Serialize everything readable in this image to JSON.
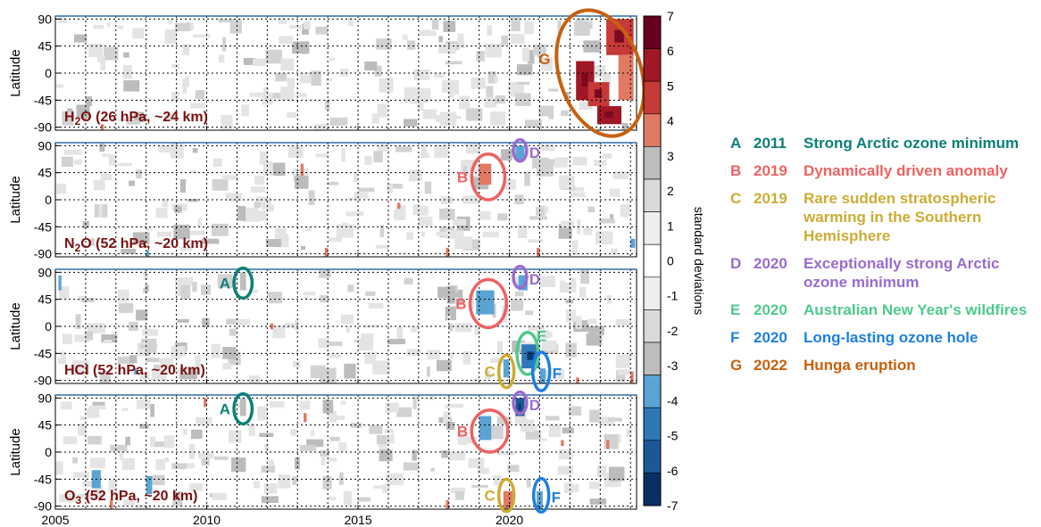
{
  "chart_data": {
    "type": "heatmap",
    "x_range": [
      2005,
      2024.2
    ],
    "xticks": [
      "2005",
      "2010",
      "2015",
      "2020"
    ],
    "xtick_values": [
      2005,
      2010,
      2015,
      2020
    ],
    "ylim": [
      -95,
      95
    ],
    "yticks": [
      "90",
      "45",
      "0",
      "-45",
      "-90"
    ],
    "ytick_values": [
      90,
      45,
      0,
      -45,
      -90
    ],
    "ylabel": "Latitude",
    "grid": true,
    "panels": [
      {
        "label_main": "H",
        "label_sub": "2",
        "label_rest": "O (26 hPa, ~24 km)",
        "anomalies": [
          {
            "x": [
              2022.2,
              2022.8
            ],
            "y": [
              -45,
              20
            ],
            "value": 6
          },
          {
            "x": [
              2022.6,
              2023.3
            ],
            "y": [
              -55,
              -15
            ],
            "value": 5
          },
          {
            "x": [
              2022.9,
              2023.7
            ],
            "y": [
              -85,
              -55
            ],
            "value": 6
          },
          {
            "x": [
              2023.2,
              2024.1
            ],
            "y": [
              30,
              90
            ],
            "value": 5
          },
          {
            "x": [
              2023.6,
              2024.1
            ],
            "y": [
              -45,
              30
            ],
            "value": 4
          },
          {
            "x": [
              2006.5,
              2006.6
            ],
            "y": [
              -95,
              -85
            ],
            "value": 4
          }
        ],
        "markers": [
          {
            "letter": "G",
            "cx": 2023.0,
            "cy": 0,
            "rx": 1.35,
            "ry": 108,
            "label_side": "left"
          }
        ]
      },
      {
        "label_main": "N",
        "label_sub": "2",
        "label_rest": "O (52 hPa, ~20 km)",
        "anomalies": [
          {
            "x": [
              2019.0,
              2019.4
            ],
            "y": [
              25,
              60
            ],
            "value": 4
          },
          {
            "x": [
              2020.2,
              2020.5
            ],
            "y": [
              65,
              90
            ],
            "value": -4
          },
          {
            "x": [
              2013.1,
              2013.2
            ],
            "y": [
              40,
              60
            ],
            "value": 4
          },
          {
            "x": [
              2016.3,
              2016.4
            ],
            "y": [
              -15,
              -5
            ],
            "value": 4
          },
          {
            "x": [
              2013.9,
              2014.0
            ],
            "y": [
              -95,
              -80
            ],
            "value": 4
          },
          {
            "x": [
              2017.9,
              2018.0
            ],
            "y": [
              -95,
              -80
            ],
            "value": 4
          },
          {
            "x": [
              2020.9,
              2021.0
            ],
            "y": [
              -95,
              -80
            ],
            "value": 4
          },
          {
            "x": [
              2008.0,
              2008.1
            ],
            "y": [
              -95,
              -85
            ],
            "value": -4
          },
          {
            "x": [
              2024.0,
              2024.15
            ],
            "y": [
              -80,
              -65
            ],
            "value": -4
          }
        ],
        "markers": [
          {
            "letter": "B",
            "cx": 2019.3,
            "cy": 38,
            "rx": 0.55,
            "ry": 38,
            "label_side": "left"
          },
          {
            "letter": "D",
            "cx": 2020.35,
            "cy": 82,
            "rx": 0.22,
            "ry": 18,
            "label_side": "right"
          }
        ]
      },
      {
        "label_main": "HCl (52 hPa, ~20 km)",
        "label_sub": "",
        "label_rest": "",
        "anomalies": [
          {
            "x": [
              2018.9,
              2019.5
            ],
            "y": [
              20,
              60
            ],
            "value": -4
          },
          {
            "x": [
              2020.3,
              2020.6
            ],
            "y": [
              60,
              85
            ],
            "value": -4
          },
          {
            "x": [
              2020.4,
              2021.0
            ],
            "y": [
              -70,
              -30
            ],
            "value": -5
          },
          {
            "x": [
              2019.8,
              2020.0
            ],
            "y": [
              -85,
              -55
            ],
            "value": -4
          },
          {
            "x": [
              2021.0,
              2021.2
            ],
            "y": [
              -95,
              -70
            ],
            "value": -4
          },
          {
            "x": [
              2011.1,
              2011.3
            ],
            "y": [
              60,
              90
            ],
            "value": -3
          },
          {
            "x": [
              2005.1,
              2005.2
            ],
            "y": [
              60,
              85
            ],
            "value": -4
          },
          {
            "x": [
              2012.1,
              2012.2
            ],
            "y": [
              -5,
              5
            ],
            "value": 4
          },
          {
            "x": [
              2007.6,
              2007.7
            ],
            "y": [
              -80,
              -70
            ],
            "value": -4
          },
          {
            "x": [
              2022.2,
              2022.3
            ],
            "y": [
              -95,
              -85
            ],
            "value": 4
          },
          {
            "x": [
              2024.0,
              2024.1
            ],
            "y": [
              -95,
              -75
            ],
            "value": 4
          }
        ],
        "markers": [
          {
            "letter": "A",
            "cx": 2011.2,
            "cy": 72,
            "rx": 0.3,
            "ry": 25,
            "label_side": "left"
          },
          {
            "letter": "B",
            "cx": 2019.3,
            "cy": 38,
            "rx": 0.6,
            "ry": 40,
            "label_side": "left"
          },
          {
            "letter": "D",
            "cx": 2020.35,
            "cy": 82,
            "rx": 0.22,
            "ry": 18,
            "label_side": "right"
          },
          {
            "letter": "E",
            "cx": 2020.6,
            "cy": -45,
            "rx": 0.35,
            "ry": 35,
            "label_side": "right-top"
          },
          {
            "letter": "C",
            "cx": 2019.9,
            "cy": -75,
            "rx": 0.25,
            "ry": 27,
            "label_side": "left"
          },
          {
            "letter": "F",
            "cx": 2021.05,
            "cy": -75,
            "rx": 0.28,
            "ry": 32,
            "label_side": "right"
          }
        ]
      },
      {
        "label_main": "O",
        "label_sub": "3",
        "label_rest": " (52 hPa, ~20 km)",
        "anomalies": [
          {
            "x": [
              2019.0,
              2019.4
            ],
            "y": [
              20,
              60
            ],
            "value": -4
          },
          {
            "x": [
              2020.2,
              2020.5
            ],
            "y": [
              60,
              90
            ],
            "value": -6
          },
          {
            "x": [
              2019.8,
              2020.1
            ],
            "y": [
              -95,
              -65
            ],
            "value": 4
          },
          {
            "x": [
              2020.9,
              2021.1
            ],
            "y": [
              -95,
              -65
            ],
            "value": -4
          },
          {
            "x": [
              2011.1,
              2011.3
            ],
            "y": [
              60,
              90
            ],
            "value": -3
          },
          {
            "x": [
              2009.9,
              2010.0
            ],
            "y": [
              75,
              90
            ],
            "value": 4
          },
          {
            "x": [
              2013.2,
              2013.3
            ],
            "y": [
              50,
              65
            ],
            "value": 4
          },
          {
            "x": [
              2006.2,
              2006.5
            ],
            "y": [
              -60,
              -30
            ],
            "value": -4
          },
          {
            "x": [
              2008.0,
              2008.2
            ],
            "y": [
              -70,
              -40
            ],
            "value": -4
          },
          {
            "x": [
              2023.2,
              2023.3
            ],
            "y": [
              5,
              20
            ],
            "value": 4
          },
          {
            "x": [
              2021.7,
              2021.8
            ],
            "y": [
              10,
              20
            ],
            "value": 4
          },
          {
            "x": [
              2006.8,
              2006.9
            ],
            "y": [
              -95,
              -80
            ],
            "value": 4
          },
          {
            "x": [
              2017.9,
              2018.0
            ],
            "y": [
              -95,
              -80
            ],
            "value": 4
          }
        ],
        "markers": [
          {
            "letter": "A",
            "cx": 2011.2,
            "cy": 72,
            "rx": 0.3,
            "ry": 25,
            "label_side": "left"
          },
          {
            "letter": "B",
            "cx": 2019.35,
            "cy": 35,
            "rx": 0.6,
            "ry": 35,
            "label_side": "left"
          },
          {
            "letter": "D",
            "cx": 2020.35,
            "cy": 82,
            "rx": 0.22,
            "ry": 18,
            "label_side": "right"
          },
          {
            "letter": "C",
            "cx": 2019.9,
            "cy": -72,
            "rx": 0.25,
            "ry": 27,
            "label_side": "left"
          },
          {
            "letter": "F",
            "cx": 2021.05,
            "cy": -72,
            "rx": 0.25,
            "ry": 28,
            "label_side": "right"
          }
        ]
      }
    ],
    "colorbar": {
      "label": "standard deviations",
      "ticks": [
        "7",
        "6",
        "5",
        "4",
        "3",
        "2",
        "1",
        "0",
        "-1",
        "-2",
        "-3",
        "-4",
        "-5",
        "-6",
        "-7"
      ],
      "levels": [
        7,
        6,
        5,
        4,
        3,
        2,
        1,
        0,
        -1,
        -2,
        -3,
        -4,
        -5,
        -6,
        -7
      ],
      "band_colors": [
        "#67001f",
        "#a01726",
        "#c63a37",
        "#e07a63",
        "#bdbdbd",
        "#d9d9d9",
        "#eeeeee",
        "#ffffff",
        "#eeeeee",
        "#d9d9d9",
        "#bdbdbd",
        "#5aa4d3",
        "#2f78b8",
        "#1c5896",
        "#0a2f64"
      ]
    },
    "events": [
      {
        "letter": "A",
        "year": "2011",
        "text": "Strong Arctic ozone minimum",
        "color": "#0c8077"
      },
      {
        "letter": "B",
        "year": "2019",
        "text": "Dynamically driven anomaly",
        "color": "#ee6262"
      },
      {
        "letter": "C",
        "year": "2019",
        "text": "Rare sudden stratospheric warming in the Southern Hemisphere",
        "color": "#ccac35"
      },
      {
        "letter": "D",
        "year": "2020",
        "text": "Exceptionally strong Arctic ozone minimum",
        "color": "#9a6bcf"
      },
      {
        "letter": "E",
        "year": "2020",
        "text": "Australian New Year's wildfires",
        "color": "#4fc98d"
      },
      {
        "letter": "F",
        "year": "2020",
        "text": "Long-lasting ozone hole",
        "color": "#1e7fe0"
      },
      {
        "letter": "G",
        "year": "2022",
        "text": "Hunga eruption",
        "color": "#c7600f"
      }
    ]
  }
}
